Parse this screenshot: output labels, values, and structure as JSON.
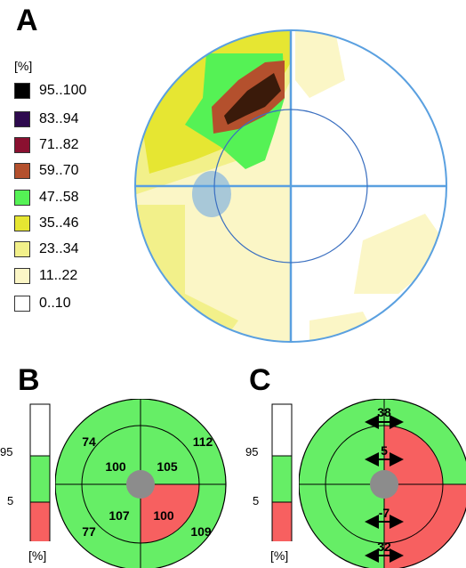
{
  "panels": {
    "a": {
      "letter": "A",
      "unit": "[%]",
      "legend": [
        {
          "label": "95..100",
          "color": "#000000"
        },
        {
          "label": "83..94",
          "color": "#2e0a4e"
        },
        {
          "label": "71..82",
          "color": "#8a1030"
        },
        {
          "label": "59..70",
          "color": "#b4502d"
        },
        {
          "label": "47..58",
          "color": "#55f255"
        },
        {
          "label": "35..46",
          "color": "#e6e632"
        },
        {
          "label": "23..34",
          "color": "#f2f08a"
        },
        {
          "label": "11..22",
          "color": "#fbf6c6"
        },
        {
          "label": "0..10",
          "color": "#ffffff"
        }
      ]
    },
    "b": {
      "letter": "B",
      "unit": "[%]",
      "scale_labels": [
        "95",
        "5"
      ],
      "values": {
        "outer_top_left": "74",
        "outer_top_right": "112",
        "outer_bottom_left": "77",
        "outer_bottom_right": "109",
        "inner_top_left": "100",
        "inner_top_right": "105",
        "inner_bottom_left": "107",
        "inner_bottom_right": "100"
      }
    },
    "c": {
      "letter": "C",
      "unit": "[%]",
      "scale_labels": [
        "95",
        "5"
      ],
      "values": {
        "outer_top": "38",
        "inner_top": "5",
        "inner_bottom": "-7",
        "outer_bottom": "32"
      }
    }
  },
  "colors": {
    "normal_green": "#66ee66",
    "abnormal_red": "#f76060",
    "center_gray": "#8c8c8c",
    "axis_blue": "#5aa0e0",
    "dark_brown": "#7a3a10",
    "blind_spot": "#a8c8d8"
  }
}
